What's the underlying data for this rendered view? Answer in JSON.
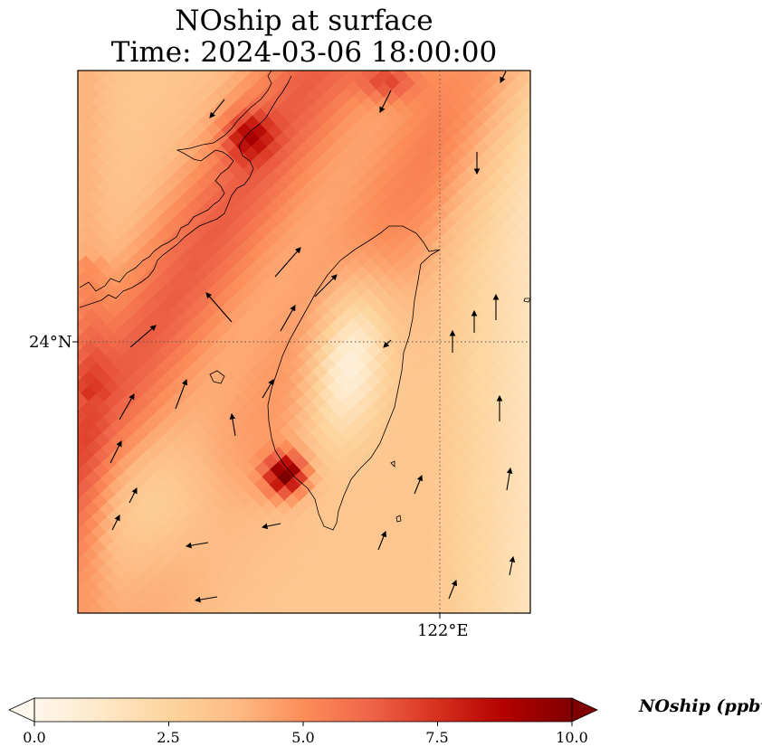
{
  "title": {
    "line1": "NOship at surface",
    "line2": "Time: 2024-03-06 18:00:00"
  },
  "map": {
    "field": "NOship",
    "region": "Taiwan",
    "gridlines": {
      "latitude_label": "24°N",
      "longitude_label": "122°E",
      "style": "dotted"
    },
    "colormap": "OrRd",
    "features": [
      "coastline",
      "wind-vectors",
      "gridlines"
    ]
  },
  "colorbar": {
    "label": "NOship (ppbv)",
    "ticks": [
      "0.0",
      "2.5",
      "5.0",
      "7.5",
      "10.0"
    ],
    "min": 0,
    "max": 10,
    "extend": "both",
    "colors": [
      "#fff7ec",
      "#fee8c8",
      "#fdd49e",
      "#fdbb84",
      "#fc8d59",
      "#ef6548",
      "#d7301f",
      "#b30000",
      "#7f0000"
    ]
  }
}
